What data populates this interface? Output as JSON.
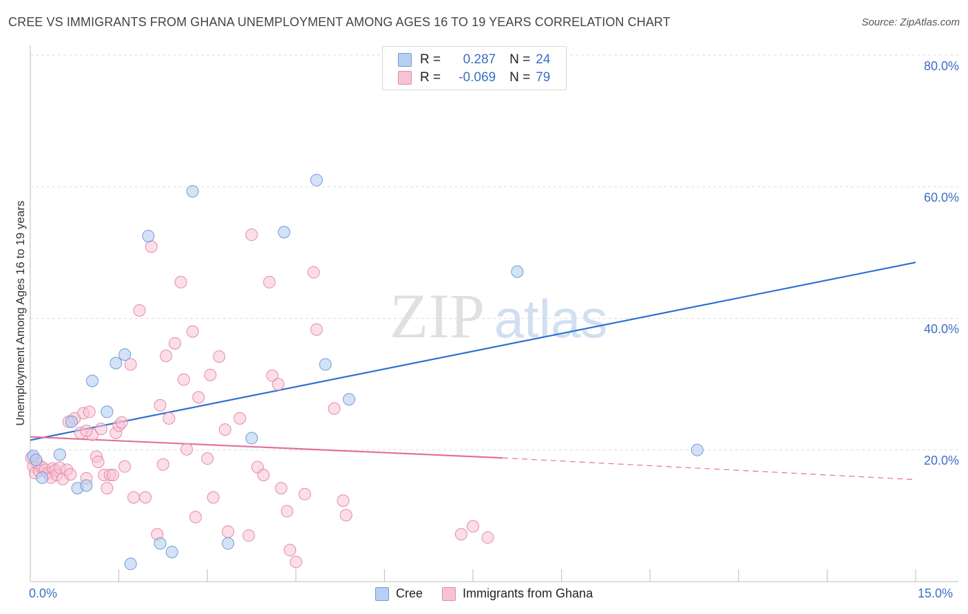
{
  "header": {
    "title": "CREE VS IMMIGRANTS FROM GHANA UNEMPLOYMENT AMONG AGES 16 TO 19 YEARS CORRELATION CHART",
    "source": "Source: ZipAtlas.com"
  },
  "watermark": {
    "zip": "ZIP",
    "atlas": "atlas"
  },
  "stats": {
    "rows": [
      {
        "r_label": "R =",
        "r_value": "0.287",
        "n_label": "N =",
        "n_value": "24"
      },
      {
        "r_label": "R =",
        "r_value": "-0.069",
        "n_label": "N =",
        "n_value": "79"
      }
    ]
  },
  "legend": {
    "items": [
      "Cree",
      "Immigrants from Ghana"
    ]
  },
  "axes": {
    "ylabel": "Unemployment Among Ages 16 to 19 years",
    "x_min_label": "0.0%",
    "x_max_label": "15.0%",
    "y_ticks": [
      "80.0%",
      "60.0%",
      "40.0%",
      "20.0%"
    ]
  },
  "colors": {
    "cree_fill": "#b7cff0",
    "cree_stroke": "#6f9ad8",
    "cree_line": "#2f6fd0",
    "ghana_fill": "#f7c3d4",
    "ghana_stroke": "#e58aa9",
    "ghana_line": "#e4709a",
    "grid": "#dcdcdc",
    "tick_text": "#3a6fc4"
  },
  "chart_data": {
    "type": "scatter",
    "title": "CREE VS IMMIGRANTS FROM GHANA UNEMPLOYMENT AMONG AGES 16 TO 19 YEARS CORRELATION CHART",
    "xlabel": "",
    "ylabel": "Unemployment Among Ages 16 to 19 years",
    "xlim": [
      0,
      15
    ],
    "ylim": [
      0,
      80
    ],
    "y_gridlines": [
      20,
      40,
      60,
      80
    ],
    "legend_position": "bottom",
    "series": [
      {
        "name": "Cree",
        "r": 0.287,
        "n": 24,
        "trend": {
          "x0": 0,
          "y0": 21.5,
          "x1": 15,
          "y1": 48.5
        },
        "points": [
          [
            0.05,
            19.1
          ],
          [
            0.2,
            15.8
          ],
          [
            0.5,
            19.3
          ],
          [
            0.7,
            24.3
          ],
          [
            0.8,
            14.2
          ],
          [
            0.95,
            14.6
          ],
          [
            1.05,
            30.5
          ],
          [
            1.3,
            25.8
          ],
          [
            1.45,
            33.2
          ],
          [
            1.6,
            34.5
          ],
          [
            1.7,
            2.7
          ],
          [
            2.0,
            52.5
          ],
          [
            2.2,
            5.8
          ],
          [
            2.4,
            4.5
          ],
          [
            2.75,
            59.3
          ],
          [
            3.35,
            5.8
          ],
          [
            3.75,
            21.8
          ],
          [
            4.3,
            53.1
          ],
          [
            4.85,
            61.0
          ],
          [
            5.0,
            33.0
          ],
          [
            5.4,
            27.7
          ],
          [
            8.25,
            47.1
          ],
          [
            11.3,
            20.0
          ],
          [
            0.1,
            18.5
          ]
        ]
      },
      {
        "name": "Immigrants from Ghana",
        "r": -0.069,
        "n": 79,
        "trend": {
          "x0": 0,
          "y0": 22.0,
          "x1": 8.0,
          "y1": 18.8,
          "dash_x1": 15,
          "dash_y1": 15.5
        },
        "points": [
          [
            0.02,
            18.8
          ],
          [
            0.05,
            17.5
          ],
          [
            0.08,
            16.5
          ],
          [
            0.12,
            18.0
          ],
          [
            0.15,
            16.8
          ],
          [
            0.2,
            17.4
          ],
          [
            0.25,
            17.0
          ],
          [
            0.3,
            16.5
          ],
          [
            0.35,
            15.8
          ],
          [
            0.38,
            17.2
          ],
          [
            0.42,
            16.9
          ],
          [
            0.45,
            16.2
          ],
          [
            0.5,
            17.3
          ],
          [
            0.55,
            15.6
          ],
          [
            0.62,
            17.0
          ],
          [
            0.68,
            16.3
          ],
          [
            0.75,
            24.8
          ],
          [
            0.85,
            22.6
          ],
          [
            0.9,
            25.6
          ],
          [
            0.95,
            15.7
          ],
          [
            1.05,
            22.3
          ],
          [
            1.12,
            19.0
          ],
          [
            1.15,
            18.2
          ],
          [
            1.2,
            23.2
          ],
          [
            1.25,
            16.2
          ],
          [
            1.3,
            14.2
          ],
          [
            1.35,
            16.2
          ],
          [
            1.4,
            16.2
          ],
          [
            1.45,
            22.6
          ],
          [
            1.5,
            23.7
          ],
          [
            1.55,
            24.2
          ],
          [
            1.6,
            17.5
          ],
          [
            1.7,
            33.0
          ],
          [
            1.75,
            12.8
          ],
          [
            1.85,
            41.2
          ],
          [
            1.95,
            12.8
          ],
          [
            2.05,
            50.9
          ],
          [
            2.15,
            7.2
          ],
          [
            2.2,
            26.8
          ],
          [
            2.25,
            17.8
          ],
          [
            2.3,
            34.3
          ],
          [
            2.35,
            24.8
          ],
          [
            2.45,
            36.2
          ],
          [
            2.55,
            45.5
          ],
          [
            2.6,
            30.7
          ],
          [
            2.65,
            20.1
          ],
          [
            2.75,
            38.0
          ],
          [
            2.8,
            9.8
          ],
          [
            2.85,
            28.0
          ],
          [
            3.0,
            18.7
          ],
          [
            3.05,
            31.4
          ],
          [
            3.1,
            12.8
          ],
          [
            3.2,
            34.2
          ],
          [
            3.3,
            23.1
          ],
          [
            3.35,
            7.6
          ],
          [
            3.55,
            24.8
          ],
          [
            3.7,
            7.0
          ],
          [
            3.75,
            52.7
          ],
          [
            3.85,
            17.4
          ],
          [
            3.95,
            16.2
          ],
          [
            4.05,
            45.5
          ],
          [
            4.1,
            31.3
          ],
          [
            4.2,
            30.0
          ],
          [
            4.25,
            14.2
          ],
          [
            4.35,
            10.7
          ],
          [
            4.4,
            4.8
          ],
          [
            4.5,
            3.0
          ],
          [
            4.65,
            13.3
          ],
          [
            4.8,
            47.0
          ],
          [
            4.85,
            38.3
          ],
          [
            5.15,
            26.3
          ],
          [
            5.3,
            12.3
          ],
          [
            5.35,
            10.1
          ],
          [
            7.3,
            7.2
          ],
          [
            7.5,
            8.4
          ],
          [
            7.75,
            6.7
          ],
          [
            0.95,
            22.9
          ],
          [
            1.0,
            25.8
          ],
          [
            0.65,
            24.3
          ]
        ]
      }
    ]
  }
}
